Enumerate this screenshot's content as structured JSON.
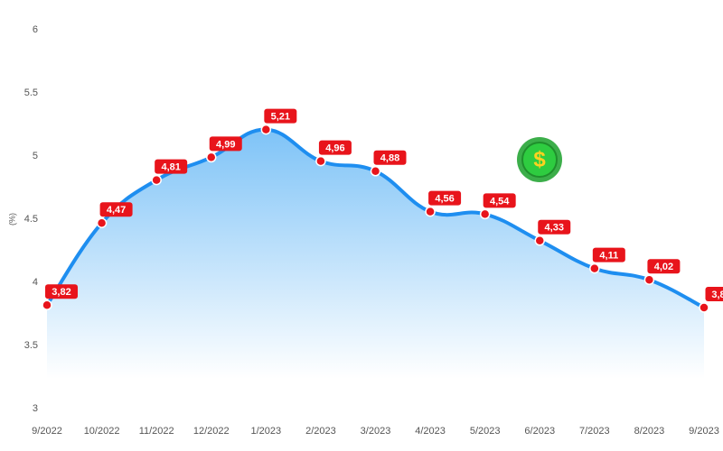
{
  "chart_data": {
    "type": "line",
    "y_label": "(%)",
    "categories": [
      "9/2022",
      "10/2022",
      "11/2022",
      "12/2022",
      "1/2023",
      "2/2023",
      "3/2023",
      "4/2023",
      "5/2023",
      "6/2023",
      "7/2023",
      "8/2023",
      "9/2023"
    ],
    "values": [
      3.82,
      4.47,
      4.81,
      4.99,
      5.21,
      4.96,
      4.88,
      4.56,
      4.54,
      4.33,
      4.11,
      4.02,
      3.8
    ],
    "value_labels": [
      "3,82",
      "4,47",
      "4,81",
      "4,99",
      "5,21",
      "4,96",
      "4,88",
      "4,56",
      "4,54",
      "4,33",
      "4,11",
      "4,02",
      "3,8"
    ],
    "color": "#1e8ef0",
    "ylim": [
      3,
      6
    ],
    "yticks": [
      3,
      3.5,
      4,
      4.5,
      5,
      5.5,
      6
    ]
  }
}
